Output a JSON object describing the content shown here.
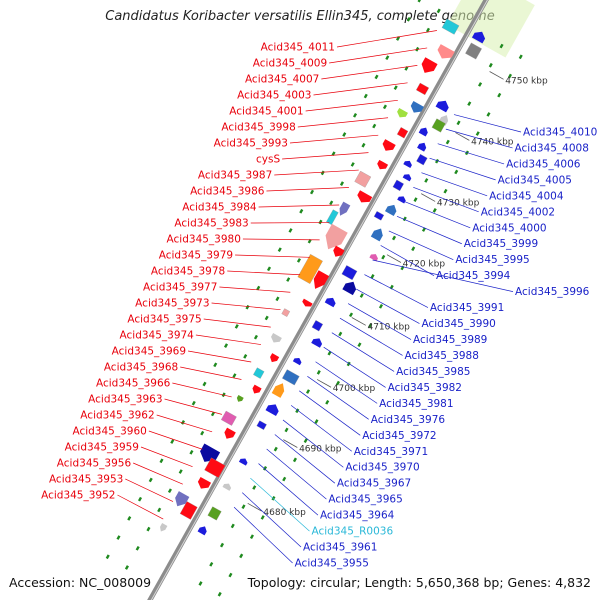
{
  "title": "Candidatus Koribacter versatilis Ellin345, complete genome",
  "footer": {
    "accession": "Accession: NC_008009",
    "topology": "Topology: circular; Length: 5,650,368 bp; Genes: 4,832"
  },
  "colors": {
    "left_label": "#e8000b",
    "right_label": "#1a22c8",
    "rna_label": "#2ab8d8",
    "backbone": "#8c8c8c",
    "tick": "#1f8a1f"
  },
  "kbp_marks": [
    {
      "label": "4750 kbp",
      "kbp": 4750
    },
    {
      "label": "4740 kbp",
      "kbp": 4740
    },
    {
      "label": "4730 kbp",
      "kbp": 4730
    },
    {
      "label": "4720 kbp",
      "kbp": 4720
    },
    {
      "label": "4710 kbp",
      "kbp": 4710
    },
    {
      "label": "4700 kbp",
      "kbp": 4700
    },
    {
      "label": "4690 kbp",
      "kbp": 4690
    },
    {
      "label": "4680 kbp",
      "kbp": 4680
    }
  ],
  "left_genes": [
    "Acid345_4011",
    "Acid345_4009",
    "Acid345_4007",
    "Acid345_4003",
    "Acid345_4001",
    "Acid345_3998",
    "Acid345_3993",
    "cysS",
    "Acid345_3987",
    "Acid345_3986",
    "Acid345_3984",
    "Acid345_3983",
    "Acid345_3980",
    "Acid345_3979",
    "Acid345_3978",
    "Acid345_3977",
    "Acid345_3973",
    "Acid345_3975",
    "Acid345_3974",
    "Acid345_3969",
    "Acid345_3968",
    "Acid345_3966",
    "Acid345_3963",
    "Acid345_3962",
    "Acid345_3960",
    "Acid345_3959",
    "Acid345_3956",
    "Acid345_3953",
    "Acid345_3952"
  ],
  "right_genes": [
    "Acid345_4010",
    "Acid345_4008",
    "Acid345_4006",
    "Acid345_4005",
    "Acid345_4004",
    "Acid345_4002",
    "Acid345_4000",
    "Acid345_3999",
    "Acid345_3995",
    "Acid345_3994",
    "Acid345_3996",
    "Acid345_3991",
    "Acid345_3990",
    "Acid345_3989",
    "Acid345_3988",
    "Acid345_3985",
    "Acid345_3982",
    "Acid345_3981",
    "Acid345_3976",
    "Acid345_3972",
    "Acid345_3971",
    "Acid345_3970",
    "Acid345_3967",
    "Acid345_3965",
    "Acid345_3964",
    "Acid345_R0036",
    "Acid345_3961",
    "Acid345_3955"
  ],
  "rna_genes": [
    "Acid345_R0036"
  ]
}
